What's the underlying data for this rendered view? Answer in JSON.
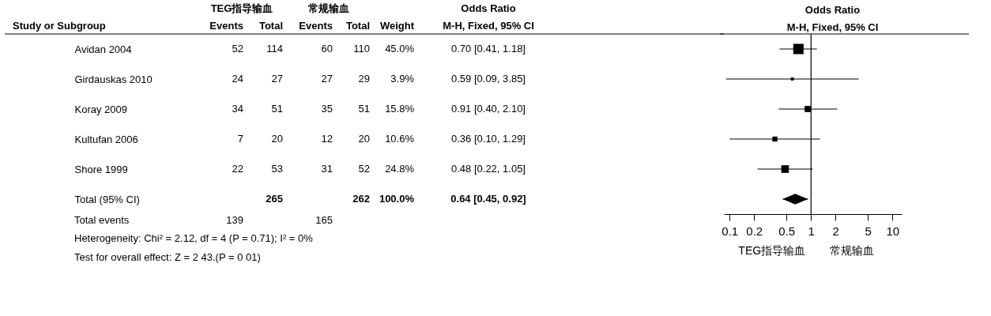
{
  "chart_data": [
    {
      "type": "other",
      "annotations": [
        "TEG指导输血",
        "常规输血",
        "Odds Ratio",
        "Study or Subgroup",
        "Events",
        "Total",
        "Events",
        "Total",
        "Weight",
        "M-H, Fixed, 95% CI",
        "52",
        "114",
        "60",
        "110",
        "45.0%",
        "0.70 [0.41, 1.18]",
        "24",
        "27",
        "27",
        "29",
        "3.9%",
        "0.59 [0.09, 3.85]",
        "34",
        "51",
        "35",
        "51",
        "15.8%",
        "0.91 [0.40, 2.10]",
        "7",
        "20",
        "12",
        "20",
        "10.6%",
        "0.36 [0.10, 1.29]",
        "22",
        "53",
        "31",
        "52",
        "24.8%",
        "0.48 [0.22, 1.05]",
        "265",
        "262",
        "100.0%",
        "0.64 [0.45, 0.92]",
        "Total events",
        "139",
        "165",
        "Heterogeneity: Chi² = 2.12, df = 4 (P = 0.71); I² = 0%",
        "Test for overall effect: Z = 2 43.(P = 0 01)"
      ]
    },
    {
      "type": "bubble",
      "title": "Odds Ratio",
      "subtitle": "M-H, Fixed, 95% CI",
      "orientation": "horizontal",
      "log": "x",
      "grid": false,
      "tick_labels": "x",
      "categories": [
        "Avidan 2004",
        "Girdauskas 2010",
        "Koray 2009",
        "Kultufan 2006",
        "Shore 1999",
        "Total (95% CI)"
      ],
      "xlim": [
        0.085,
        13
      ],
      "xticks": [
        0.1,
        0.2,
        0.5,
        1,
        2,
        5,
        10
      ],
      "series": [
        {
          "type": "bubble",
          "marker": "square",
          "color": "#000000",
          "values": [
            0.7,
            0.59,
            0.91,
            0.36,
            0.48,
            null
          ],
          "sizes": [
            1,
            0.087,
            0.351,
            0.236,
            0.551,
            null
          ],
          "errors": [
            [
              0.41,
              1.18
            ],
            [
              0.09,
              3.85
            ],
            [
              0.4,
              2.1
            ],
            [
              0.1,
              1.29
            ],
            [
              0.22,
              1.05
            ],
            null
          ]
        },
        {
          "type": "scatter",
          "marker": "diamond",
          "color": "#000000",
          "values": [
            null,
            null,
            null,
            null,
            null,
            0.64
          ],
          "errors": [
            null,
            null,
            null,
            null,
            null,
            [
              0.45,
              0.92
            ]
          ]
        }
      ],
      "ref_lines": [
        {
          "axis": "x",
          "value": 1,
          "color": "#000000"
        }
      ],
      "annotations": [
        "TEG指导输血",
        "常规输血"
      ]
    }
  ]
}
